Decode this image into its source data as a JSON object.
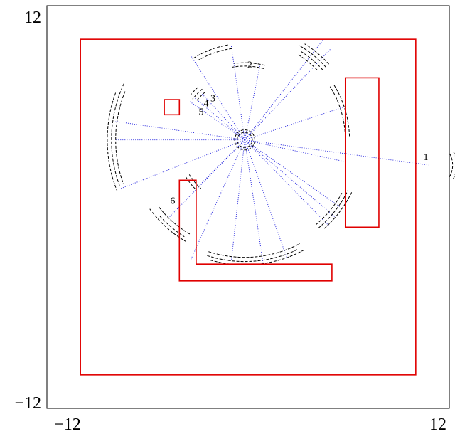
{
  "chart_data": {
    "type": "diagram",
    "title": "",
    "xlabel": "",
    "ylabel": "",
    "xlim": [
      -12,
      12
    ],
    "ylim": [
      -12,
      12
    ],
    "tick_labels": {
      "x_min": "−12",
      "x_max": "12",
      "y_min": "−12",
      "y_max": "12"
    },
    "walls_color": "#e00000",
    "rays_color": "#2a2adf",
    "arcs_color": "#000000",
    "robot": {
      "x": -0.2,
      "y": 4.0
    },
    "rectangles": [
      {
        "name": "outer-boundary",
        "x0": -10,
        "y0": -10,
        "x1": 10,
        "y1": 10
      },
      {
        "name": "small-square",
        "x0": -5.0,
        "y0": 5.5,
        "x1": -4.1,
        "y1": 6.4
      },
      {
        "name": "right-bar",
        "x0": 5.8,
        "y0": -1.2,
        "x1": 7.8,
        "y1": 7.7
      }
    ],
    "polygons": [
      {
        "name": "l-shape",
        "points": [
          [
            -4.1,
            1.6
          ],
          [
            -3.1,
            1.6
          ],
          [
            -3.1,
            -3.4
          ],
          [
            5.0,
            -3.4
          ],
          [
            5.0,
            -4.4
          ],
          [
            -4.1,
            -4.4
          ]
        ]
      }
    ],
    "rays": [
      {
        "x": 10.8,
        "y": 2.5
      },
      {
        "x": 4.5,
        "y": 10.0
      },
      {
        "x": 4.9,
        "y": 9.4
      },
      {
        "x": 0.7,
        "y": 8.4
      },
      {
        "x": -1.0,
        "y": 9.6
      },
      {
        "x": -3.4,
        "y": 9.0
      },
      {
        "x": -2.8,
        "y": 6.8
      },
      {
        "x": -3.3,
        "y": 6.6
      },
      {
        "x": -3.5,
        "y": 6.3
      },
      {
        "x": -7.9,
        "y": 5.1
      },
      {
        "x": -7.9,
        "y": 4.0
      },
      {
        "x": -7.6,
        "y": 1.1
      },
      {
        "x": -4.8,
        "y": -0.7
      },
      {
        "x": -2.9,
        "y": 1.3
      },
      {
        "x": -2.7,
        "y": 1.5
      },
      {
        "x": -3.4,
        "y": -3.1
      },
      {
        "x": -1.0,
        "y": -3.2
      },
      {
        "x": 0.9,
        "y": -3.4
      },
      {
        "x": 2.3,
        "y": -3.0
      },
      {
        "x": 4.8,
        "y": -1.1
      },
      {
        "x": 5.2,
        "y": -0.6
      },
      {
        "x": 5.5,
        "y": 0.0
      },
      {
        "x": 5.8,
        "y": 2.7
      },
      {
        "x": 5.8,
        "y": 6.0
      }
    ],
    "arcs": [
      {
        "cx": 10.8,
        "cy": 2.5,
        "r": 1.4,
        "a0": -30,
        "a1": 30
      },
      {
        "cx": 10.8,
        "cy": 2.5,
        "r": 1.65,
        "a0": -30,
        "a1": 30
      },
      {
        "cx": -0.2,
        "cy": 4.0,
        "r": 6.0,
        "a0": 44,
        "a1": 58
      },
      {
        "cx": -0.2,
        "cy": 4.0,
        "r": 6.25,
        "a0": 42,
        "a1": 58
      },
      {
        "cx": -0.2,
        "cy": 4.0,
        "r": 6.5,
        "a0": 42,
        "a1": 60
      },
      {
        "cx": -0.2,
        "cy": 4.0,
        "r": 6.75,
        "a0": 42,
        "a1": 58
      },
      {
        "cx": -0.2,
        "cy": 4.0,
        "r": 5.5,
        "a0": 98,
        "a1": 120
      },
      {
        "cx": -0.2,
        "cy": 4.0,
        "r": 5.75,
        "a0": 100,
        "a1": 122
      },
      {
        "cx": -0.2,
        "cy": 4.0,
        "r": 4.4,
        "a0": 75,
        "a1": 100
      },
      {
        "cx": -0.2,
        "cy": 4.0,
        "r": 4.6,
        "a0": 75,
        "a1": 98
      },
      {
        "cx": -0.2,
        "cy": 4.0,
        "r": 3.7,
        "a0": 130,
        "a1": 142
      },
      {
        "cx": -0.2,
        "cy": 4.0,
        "r": 3.95,
        "a0": 130,
        "a1": 142
      },
      {
        "cx": -0.2,
        "cy": 4.0,
        "r": 4.2,
        "a0": 132,
        "a1": 140
      },
      {
        "cx": -0.2,
        "cy": 4.0,
        "r": 7.7,
        "a0": 158,
        "a1": 200
      },
      {
        "cx": -0.2,
        "cy": 4.0,
        "r": 7.95,
        "a0": 155,
        "a1": 200
      },
      {
        "cx": -0.2,
        "cy": 4.0,
        "r": 8.2,
        "a0": 160,
        "a1": 202
      },
      {
        "cx": -0.2,
        "cy": 4.0,
        "r": 6.5,
        "a0": 218,
        "a1": 240
      },
      {
        "cx": -0.2,
        "cy": 4.0,
        "r": 6.8,
        "a0": 222,
        "a1": 238
      },
      {
        "cx": -0.2,
        "cy": 4.0,
        "r": 7.0,
        "a0": 216,
        "a1": 240
      },
      {
        "cx": -0.2,
        "cy": 4.0,
        "r": 3.9,
        "a0": 212,
        "a1": 228
      },
      {
        "cx": -0.2,
        "cy": 4.0,
        "r": 4.15,
        "a0": 212,
        "a1": 226
      },
      {
        "cx": -0.2,
        "cy": 4.0,
        "r": 7.0,
        "a0": 252,
        "a1": 298
      },
      {
        "cx": -0.2,
        "cy": 4.0,
        "r": 7.25,
        "a0": 252,
        "a1": 296
      },
      {
        "cx": -0.2,
        "cy": 4.0,
        "r": 7.45,
        "a0": 254,
        "a1": 298
      },
      {
        "cx": -0.2,
        "cy": 4.0,
        "r": 6.6,
        "a0": 310,
        "a1": 332
      },
      {
        "cx": -0.2,
        "cy": 4.0,
        "r": 6.85,
        "a0": 310,
        "a1": 334
      },
      {
        "cx": -0.2,
        "cy": 4.0,
        "r": 7.1,
        "a0": 312,
        "a1": 334
      },
      {
        "cx": -0.2,
        "cy": 4.0,
        "r": 6.0,
        "a0": 2,
        "a1": 32
      },
      {
        "cx": -0.2,
        "cy": 4.0,
        "r": 6.25,
        "a0": 2,
        "a1": 32
      },
      {
        "cx": -0.2,
        "cy": 4.0,
        "r": 0.45,
        "a0": 0,
        "a1": 360
      },
      {
        "cx": -0.2,
        "cy": 4.0,
        "r": 0.6,
        "a0": 0,
        "a1": 360
      }
    ],
    "labels": [
      {
        "text": "1",
        "x": 10.6,
        "y": 2.8
      },
      {
        "text": "2",
        "x": 0.1,
        "y": 8.3
      },
      {
        "text": "3",
        "x": -2.1,
        "y": 6.3
      },
      {
        "text": "4",
        "x": -2.5,
        "y": 6.0
      },
      {
        "text": "5",
        "x": -2.8,
        "y": 5.5
      },
      {
        "text": "6",
        "x": -4.5,
        "y": 0.2
      }
    ]
  }
}
